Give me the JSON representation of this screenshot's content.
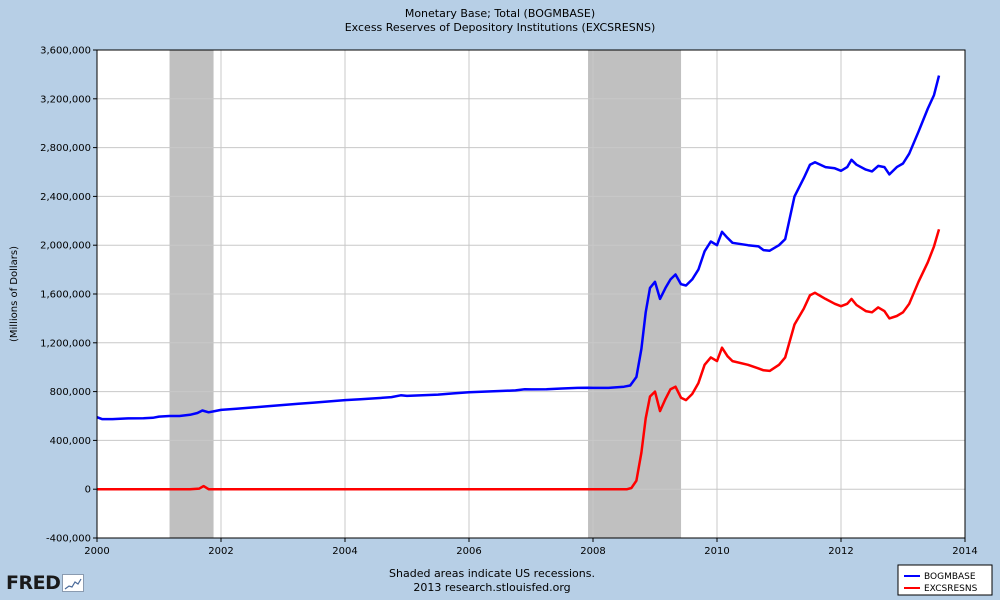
{
  "chart_data": {
    "type": "line",
    "title": "Monetary Base; Total (BOGMBASE)",
    "subtitle": "Excess Reserves of Depository Institutions (EXCSRESNS)",
    "ylabel": "(Millions of Dollars)",
    "xlabel": "",
    "xlim": [
      2000,
      2014
    ],
    "ylim": [
      -400000,
      3600000
    ],
    "x_ticks": [
      2000,
      2002,
      2004,
      2006,
      2008,
      2010,
      2012,
      2014
    ],
    "x_tick_labels": [
      "2000",
      "2002",
      "2004",
      "2006",
      "2008",
      "2010",
      "2012",
      "2014"
    ],
    "y_ticks": [
      -400000,
      0,
      400000,
      800000,
      1200000,
      1600000,
      2000000,
      2400000,
      2800000,
      3200000,
      3600000
    ],
    "y_tick_labels": [
      "-400,000",
      "0",
      "400,000",
      "800,000",
      "1,200,000",
      "1,600,000",
      "2,000,000",
      "2,400,000",
      "2,800,000",
      "3,200,000",
      "3,600,000"
    ],
    "grid": true,
    "legend_position": "bottom-right",
    "recessions": [
      [
        2001.17,
        2001.88
      ],
      [
        2007.92,
        2009.42
      ]
    ],
    "series": [
      {
        "name": "BOGMBASE",
        "color": "#0000ff",
        "points": [
          [
            2000.0,
            590000
          ],
          [
            2000.08,
            575000
          ],
          [
            2000.25,
            575000
          ],
          [
            2000.5,
            580000
          ],
          [
            2000.75,
            582000
          ],
          [
            2000.9,
            585000
          ],
          [
            2001.0,
            595000
          ],
          [
            2001.17,
            600000
          ],
          [
            2001.33,
            600000
          ],
          [
            2001.5,
            610000
          ],
          [
            2001.62,
            625000
          ],
          [
            2001.7,
            645000
          ],
          [
            2001.8,
            630000
          ],
          [
            2001.9,
            640000
          ],
          [
            2002.0,
            650000
          ],
          [
            2002.25,
            660000
          ],
          [
            2002.5,
            670000
          ],
          [
            2002.75,
            680000
          ],
          [
            2003.0,
            690000
          ],
          [
            2003.25,
            700000
          ],
          [
            2003.5,
            710000
          ],
          [
            2003.75,
            720000
          ],
          [
            2004.0,
            730000
          ],
          [
            2004.25,
            738000
          ],
          [
            2004.5,
            745000
          ],
          [
            2004.75,
            755000
          ],
          [
            2004.9,
            770000
          ],
          [
            2005.0,
            765000
          ],
          [
            2005.25,
            770000
          ],
          [
            2005.5,
            775000
          ],
          [
            2005.75,
            785000
          ],
          [
            2006.0,
            795000
          ],
          [
            2006.25,
            800000
          ],
          [
            2006.5,
            805000
          ],
          [
            2006.75,
            810000
          ],
          [
            2006.9,
            820000
          ],
          [
            2007.0,
            818000
          ],
          [
            2007.25,
            820000
          ],
          [
            2007.5,
            825000
          ],
          [
            2007.75,
            830000
          ],
          [
            2007.92,
            832000
          ],
          [
            2008.0,
            830000
          ],
          [
            2008.25,
            830000
          ],
          [
            2008.5,
            840000
          ],
          [
            2008.6,
            850000
          ],
          [
            2008.7,
            920000
          ],
          [
            2008.78,
            1150000
          ],
          [
            2008.85,
            1450000
          ],
          [
            2008.92,
            1650000
          ],
          [
            2009.0,
            1700000
          ],
          [
            2009.08,
            1560000
          ],
          [
            2009.17,
            1650000
          ],
          [
            2009.25,
            1720000
          ],
          [
            2009.33,
            1760000
          ],
          [
            2009.42,
            1680000
          ],
          [
            2009.5,
            1670000
          ],
          [
            2009.6,
            1720000
          ],
          [
            2009.7,
            1800000
          ],
          [
            2009.8,
            1950000
          ],
          [
            2009.9,
            2030000
          ],
          [
            2010.0,
            2000000
          ],
          [
            2010.08,
            2110000
          ],
          [
            2010.17,
            2060000
          ],
          [
            2010.25,
            2020000
          ],
          [
            2010.5,
            2000000
          ],
          [
            2010.67,
            1990000
          ],
          [
            2010.75,
            1960000
          ],
          [
            2010.85,
            1955000
          ],
          [
            2011.0,
            2000000
          ],
          [
            2011.1,
            2050000
          ],
          [
            2011.25,
            2400000
          ],
          [
            2011.4,
            2550000
          ],
          [
            2011.5,
            2660000
          ],
          [
            2011.58,
            2680000
          ],
          [
            2011.75,
            2640000
          ],
          [
            2011.9,
            2630000
          ],
          [
            2012.0,
            2610000
          ],
          [
            2012.1,
            2640000
          ],
          [
            2012.17,
            2700000
          ],
          [
            2012.25,
            2660000
          ],
          [
            2012.4,
            2620000
          ],
          [
            2012.5,
            2605000
          ],
          [
            2012.6,
            2650000
          ],
          [
            2012.7,
            2640000
          ],
          [
            2012.78,
            2580000
          ],
          [
            2012.9,
            2640000
          ],
          [
            2013.0,
            2670000
          ],
          [
            2013.1,
            2750000
          ],
          [
            2013.25,
            2930000
          ],
          [
            2013.4,
            3120000
          ],
          [
            2013.5,
            3230000
          ],
          [
            2013.58,
            3390000
          ]
        ]
      },
      {
        "name": "EXCSRESNS",
        "color": "#ff0000",
        "points": [
          [
            2000.0,
            0
          ],
          [
            2001.5,
            0
          ],
          [
            2001.65,
            5000
          ],
          [
            2001.72,
            25000
          ],
          [
            2001.8,
            0
          ],
          [
            2002.0,
            0
          ],
          [
            2004.0,
            0
          ],
          [
            2006.0,
            0
          ],
          [
            2008.0,
            0
          ],
          [
            2008.55,
            0
          ],
          [
            2008.62,
            10000
          ],
          [
            2008.7,
            70000
          ],
          [
            2008.78,
            300000
          ],
          [
            2008.85,
            580000
          ],
          [
            2008.92,
            760000
          ],
          [
            2009.0,
            800000
          ],
          [
            2009.08,
            640000
          ],
          [
            2009.17,
            740000
          ],
          [
            2009.25,
            820000
          ],
          [
            2009.33,
            840000
          ],
          [
            2009.42,
            750000
          ],
          [
            2009.5,
            730000
          ],
          [
            2009.6,
            780000
          ],
          [
            2009.7,
            870000
          ],
          [
            2009.8,
            1020000
          ],
          [
            2009.9,
            1080000
          ],
          [
            2010.0,
            1050000
          ],
          [
            2010.08,
            1160000
          ],
          [
            2010.17,
            1090000
          ],
          [
            2010.25,
            1050000
          ],
          [
            2010.5,
            1020000
          ],
          [
            2010.67,
            990000
          ],
          [
            2010.75,
            975000
          ],
          [
            2010.85,
            970000
          ],
          [
            2011.0,
            1020000
          ],
          [
            2011.1,
            1080000
          ],
          [
            2011.25,
            1350000
          ],
          [
            2011.4,
            1480000
          ],
          [
            2011.5,
            1590000
          ],
          [
            2011.58,
            1610000
          ],
          [
            2011.75,
            1560000
          ],
          [
            2011.9,
            1520000
          ],
          [
            2012.0,
            1500000
          ],
          [
            2012.1,
            1520000
          ],
          [
            2012.17,
            1560000
          ],
          [
            2012.25,
            1510000
          ],
          [
            2012.4,
            1460000
          ],
          [
            2012.5,
            1450000
          ],
          [
            2012.6,
            1490000
          ],
          [
            2012.7,
            1460000
          ],
          [
            2012.78,
            1400000
          ],
          [
            2012.9,
            1420000
          ],
          [
            2013.0,
            1450000
          ],
          [
            2013.1,
            1520000
          ],
          [
            2013.25,
            1700000
          ],
          [
            2013.4,
            1860000
          ],
          [
            2013.5,
            1990000
          ],
          [
            2013.58,
            2130000
          ]
        ]
      }
    ]
  },
  "footer": {
    "line1": "Shaded areas indicate US recessions.",
    "line2": "2013 research.stlouisfed.org"
  },
  "logo": {
    "text": "FRED",
    "icon": "fred-chart-icon"
  },
  "colors": {
    "background": "#b7cfe6",
    "plot_background": "#ffffff",
    "recession": "#c0c0c0",
    "grid": "#c8c8c8"
  }
}
